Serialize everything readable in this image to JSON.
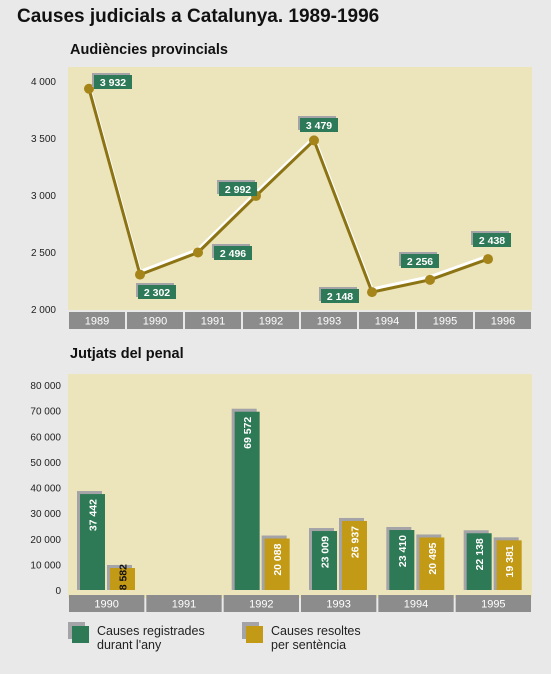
{
  "title": "Causes judicials a Catalunya. 1989-1996",
  "colors": {
    "background": "#e9e9ea",
    "plot_bg": "#ece4ba",
    "line": "#8c7414",
    "marker": "#a5851a",
    "label_box": "#2e7957",
    "axis_band": "#8c8c8c",
    "series_registrades": "#2f7a56",
    "series_resoltes": "#c39a16",
    "shadow": "#a3a3a8"
  },
  "chart_data": [
    {
      "type": "line",
      "title": "Audiències provincials",
      "categories": [
        "1989",
        "1990",
        "1991",
        "1992",
        "1993",
        "1994",
        "1995",
        "1996"
      ],
      "values": [
        3932,
        2302,
        2496,
        2992,
        3479,
        2148,
        2256,
        2438
      ],
      "value_labels": [
        "3 932",
        "2 302",
        "2 496",
        "2 992",
        "3 479",
        "2 148",
        "2 256",
        "2 438"
      ],
      "yticks": [
        "4 000",
        "3 500",
        "3 000",
        "2 500",
        "2 000"
      ],
      "ylim": [
        2000,
        4000
      ],
      "grid": false
    },
    {
      "type": "bar",
      "title": "Jutjats del penal",
      "categories": [
        "1990",
        "1991",
        "1992",
        "1993",
        "1994",
        "1995"
      ],
      "series": [
        {
          "name": "Causes registrades durant l'any",
          "values": [
            37442,
            null,
            69572,
            23009,
            23410,
            22138
          ],
          "labels": [
            "37 442",
            "",
            "69 572",
            "23 009",
            "23 410",
            "22 138"
          ]
        },
        {
          "name": "Causes resoltes per sentència",
          "values": [
            8582,
            null,
            20088,
            26937,
            20495,
            19381
          ],
          "labels": [
            "8 582",
            "",
            "20 088",
            "26 937",
            "20 495",
            "19 381"
          ]
        }
      ],
      "yticks": [
        "80 000",
        "70 000",
        "60 000",
        "50 000",
        "40 000",
        "30 000",
        "20 000",
        "10 000",
        "0"
      ],
      "ylim": [
        0,
        80000
      ],
      "legend_position": "bottom-left",
      "grid": false
    }
  ],
  "legend": [
    {
      "line1": "Causes registrades",
      "line2": "durant l'any"
    },
    {
      "line1": "Causes resoltes",
      "line2": "per sentència"
    }
  ]
}
